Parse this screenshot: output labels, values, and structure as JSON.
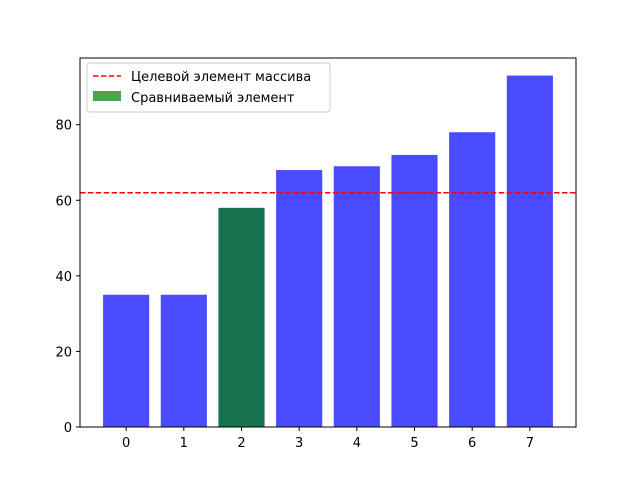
{
  "chart_data": {
    "type": "bar",
    "categories": [
      "0",
      "1",
      "2",
      "3",
      "4",
      "5",
      "6",
      "7"
    ],
    "values": [
      35,
      35,
      58,
      68,
      69,
      72,
      78,
      93
    ],
    "highlight_index": 2,
    "target_value": 62,
    "xlabel": "",
    "ylabel": "",
    "title": "",
    "ylim": [
      0,
      97.65
    ],
    "yticks": [
      0,
      20,
      40,
      60,
      80
    ],
    "grid": false,
    "legend_position": "top-left",
    "legend": {
      "target_label": "Целевой элемент массива",
      "compared_label": "Сравниваемый элемент"
    },
    "colors": {
      "bar": "#4a4aff",
      "highlight": "#17734f",
      "legend_highlight": "#4ca64c",
      "target_line": "#ff0000"
    }
  }
}
